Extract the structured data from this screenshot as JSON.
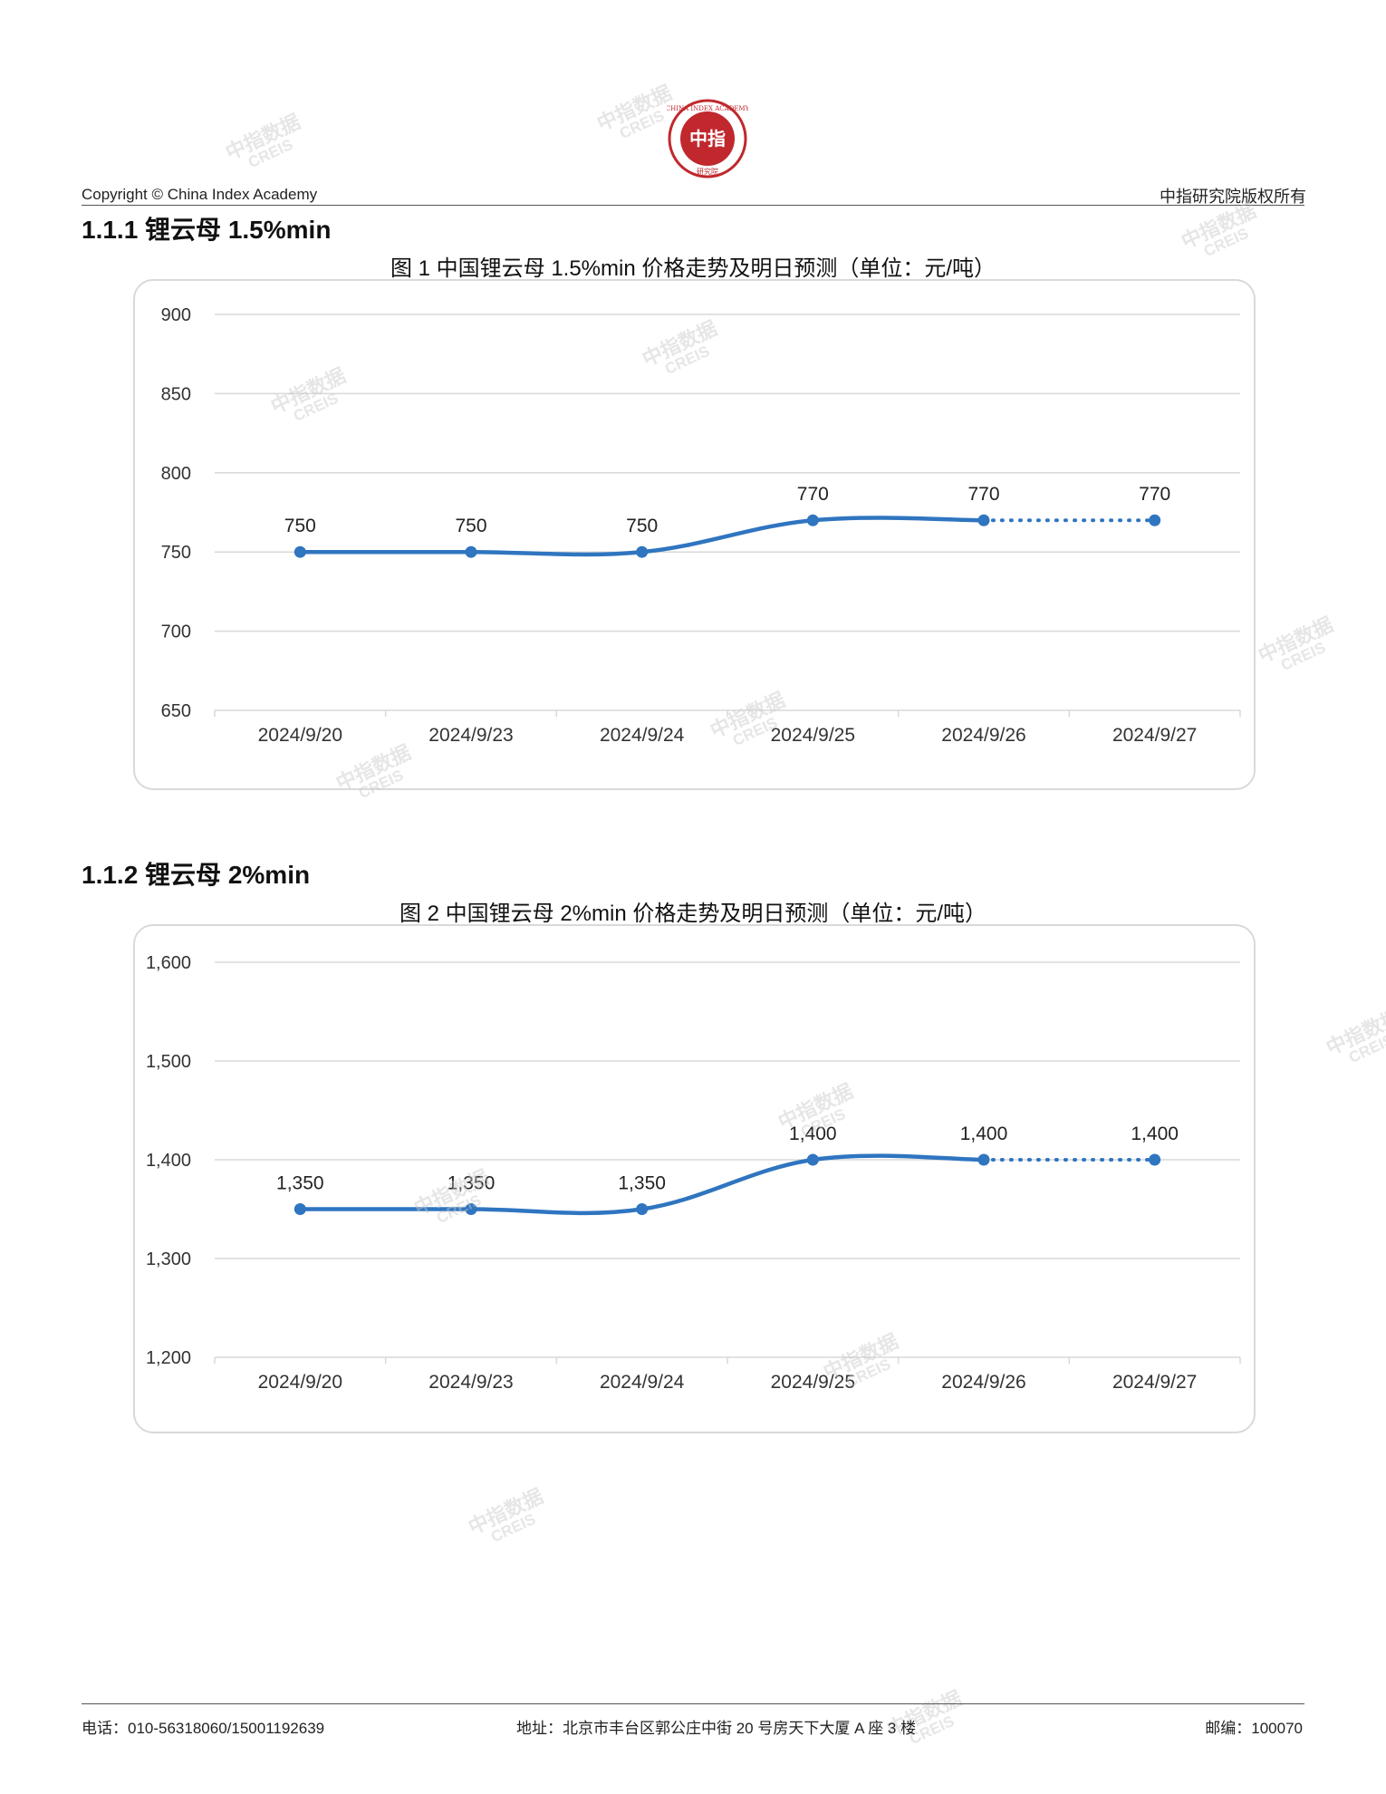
{
  "header": {
    "copyright": "Copyright © China Index Academy",
    "rights": "中指研究院版权所有",
    "logo_top_text": "CHINA INDEX ACADEMY",
    "logo_center_text": "中指",
    "logo_bottom_text": "研究院"
  },
  "watermark": {
    "main": "中指数据",
    "sub": "CREIS"
  },
  "sections": [
    {
      "heading": "1.1.1 锂云母 1.5%min",
      "figure_title": "图 1 中国锂云母 1.5%min 价格走势及明日预测（单位：元/吨）"
    },
    {
      "heading": "1.1.2 锂云母 2%min",
      "figure_title": "图 2 中国锂云母 2%min 价格走势及明日预测（单位：元/吨）"
    }
  ],
  "chart_data": [
    {
      "type": "line",
      "title": "图 1 中国锂云母 1.5%min 价格走势及明日预测（单位：元/吨）",
      "categories": [
        "2024/9/20",
        "2024/9/23",
        "2024/9/24",
        "2024/9/25",
        "2024/9/26",
        "2024/9/27"
      ],
      "values": [
        750,
        750,
        750,
        770,
        770,
        770
      ],
      "data_labels": [
        "750",
        "750",
        "750",
        "770",
        "770",
        "770"
      ],
      "forecast_from_index": 4,
      "ylim": [
        650,
        900
      ],
      "yticks": [
        650,
        700,
        750,
        800,
        850,
        900
      ],
      "ytick_labels": [
        "650",
        "700",
        "750",
        "800",
        "850",
        "900"
      ],
      "grid": true,
      "color": "#2f75c0"
    },
    {
      "type": "line",
      "title": "图 2 中国锂云母 2%min 价格走势及明日预测（单位：元/吨）",
      "categories": [
        "2024/9/20",
        "2024/9/23",
        "2024/9/24",
        "2024/9/25",
        "2024/9/26",
        "2024/9/27"
      ],
      "values": [
        1350,
        1350,
        1350,
        1400,
        1400,
        1400
      ],
      "data_labels": [
        "1,350",
        "1,350",
        "1,350",
        "1,400",
        "1,400",
        "1,400"
      ],
      "forecast_from_index": 4,
      "ylim": [
        1200,
        1600
      ],
      "yticks": [
        1200,
        1300,
        1400,
        1500,
        1600
      ],
      "ytick_labels": [
        "1,200",
        "1,300",
        "1,400",
        "1,500",
        "1,600"
      ],
      "grid": true,
      "color": "#2f75c0"
    }
  ],
  "footer": {
    "phone": "电话：010-56318060/15001192639",
    "address": "地址：北京市丰台区郭公庄中街 20 号房天下大厦 A 座 3 楼",
    "postcode": "邮编：100070"
  }
}
